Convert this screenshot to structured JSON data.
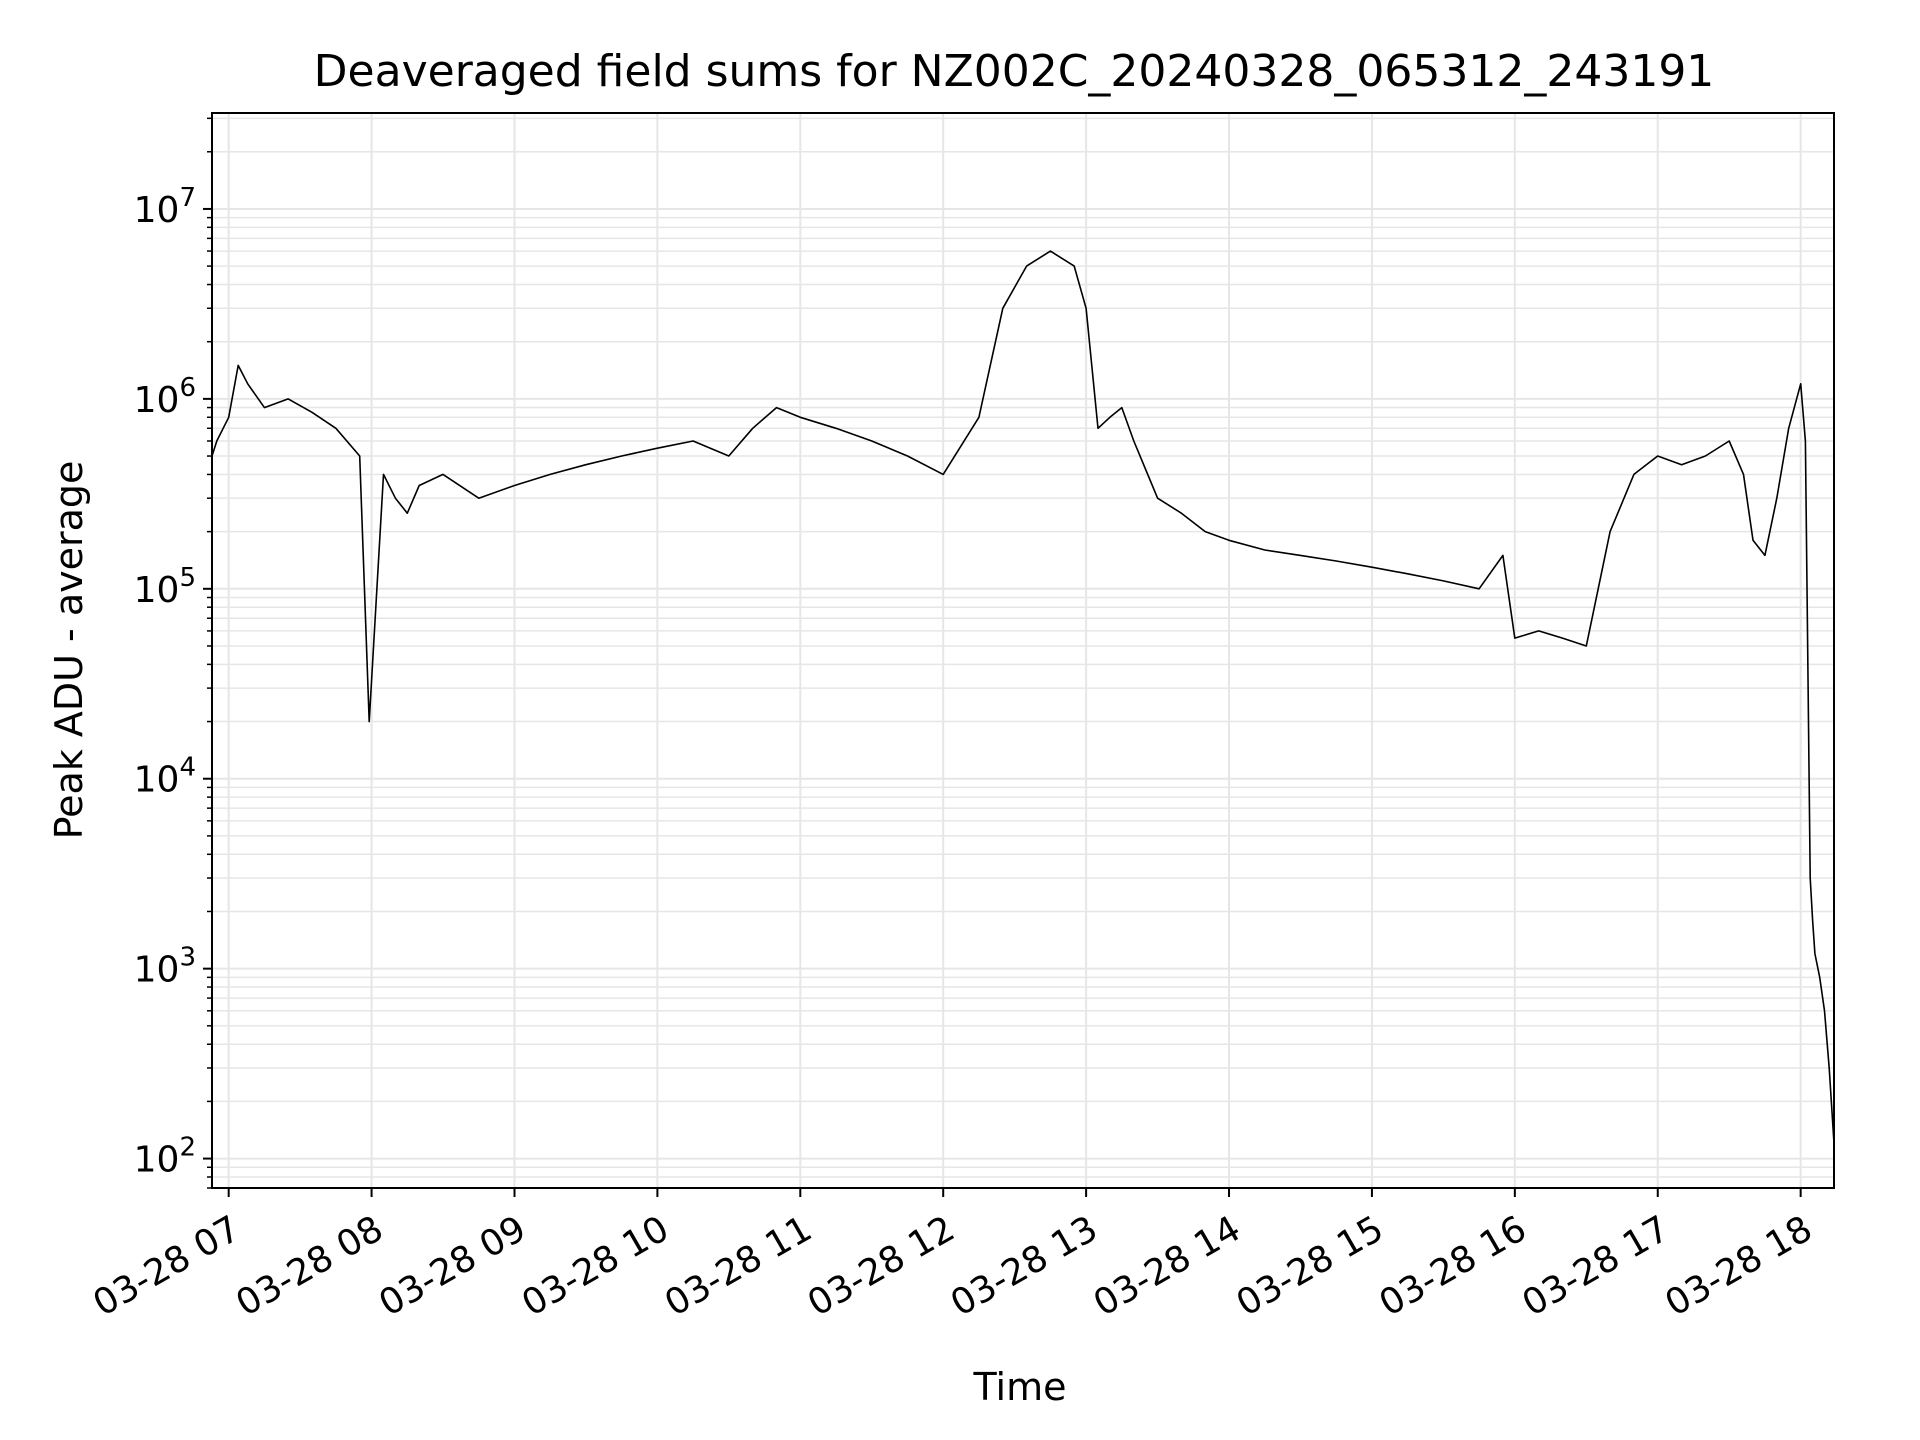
{
  "chart_data": {
    "type": "line",
    "title": "Deaveraged field sums for NZ002C_20240328_065312_243191",
    "xlabel": "Time",
    "ylabel": "Peak ADU - average",
    "yscale": "log",
    "ylim": [
      70,
      32000000
    ],
    "xlim": [
      "2024-03-28 06:53",
      "2024-03-28 18:14"
    ],
    "grid": true,
    "line_color": "#000000",
    "grid_color": "#e6e6e6",
    "x_ticks": [
      "2024-03-28 07:00",
      "2024-03-28 08:00",
      "2024-03-28 09:00",
      "2024-03-28 10:00",
      "2024-03-28 11:00",
      "2024-03-28 12:00",
      "2024-03-28 13:00",
      "2024-03-28 14:00",
      "2024-03-28 15:00",
      "2024-03-28 16:00",
      "2024-03-28 17:00",
      "2024-03-28 18:00"
    ],
    "x_tick_labels": [
      "03-28 07",
      "03-28 08",
      "03-28 09",
      "03-28 10",
      "03-28 11",
      "03-28 12",
      "03-28 13",
      "03-28 14",
      "03-28 15",
      "03-28 16",
      "03-28 17",
      "03-28 18"
    ],
    "y_tick_values": [
      100,
      1000,
      10000,
      100000,
      1000000,
      10000000
    ],
    "y_tick_labels": [
      {
        "base": "10",
        "exp": "2"
      },
      {
        "base": "10",
        "exp": "3"
      },
      {
        "base": "10",
        "exp": "4"
      },
      {
        "base": "10",
        "exp": "5"
      },
      {
        "base": "10",
        "exp": "6"
      },
      {
        "base": "10",
        "exp": "7"
      }
    ],
    "series": [
      {
        "x": [
          "2024-03-28 06:53",
          "2024-03-28 06:55",
          "2024-03-28 07:00",
          "2024-03-28 07:04",
          "2024-03-28 07:08",
          "2024-03-28 07:15",
          "2024-03-28 07:25",
          "2024-03-28 07:35",
          "2024-03-28 07:45",
          "2024-03-28 07:55",
          "2024-03-28 07:59",
          "2024-03-28 08:05",
          "2024-03-28 08:10",
          "2024-03-28 08:15",
          "2024-03-28 08:20",
          "2024-03-28 08:30",
          "2024-03-28 08:45",
          "2024-03-28 09:00",
          "2024-03-28 09:15",
          "2024-03-28 09:30",
          "2024-03-28 09:45",
          "2024-03-28 10:00",
          "2024-03-28 10:15",
          "2024-03-28 10:30",
          "2024-03-28 10:40",
          "2024-03-28 10:50",
          "2024-03-28 11:00",
          "2024-03-28 11:15",
          "2024-03-28 11:30",
          "2024-03-28 11:45",
          "2024-03-28 12:00",
          "2024-03-28 12:15",
          "2024-03-28 12:25",
          "2024-03-28 12:35",
          "2024-03-28 12:45",
          "2024-03-28 12:55",
          "2024-03-28 13:00",
          "2024-03-28 13:05",
          "2024-03-28 13:10",
          "2024-03-28 13:15",
          "2024-03-28 13:20",
          "2024-03-28 13:30",
          "2024-03-28 13:40",
          "2024-03-28 13:50",
          "2024-03-28 14:00",
          "2024-03-28 14:15",
          "2024-03-28 14:30",
          "2024-03-28 14:45",
          "2024-03-28 15:00",
          "2024-03-28 15:15",
          "2024-03-28 15:30",
          "2024-03-28 15:45",
          "2024-03-28 15:55",
          "2024-03-28 16:00",
          "2024-03-28 16:10",
          "2024-03-28 16:20",
          "2024-03-28 16:30",
          "2024-03-28 16:40",
          "2024-03-28 16:50",
          "2024-03-28 17:00",
          "2024-03-28 17:10",
          "2024-03-28 17:20",
          "2024-03-28 17:30",
          "2024-03-28 17:36",
          "2024-03-28 17:40",
          "2024-03-28 17:45",
          "2024-03-28 17:50",
          "2024-03-28 17:55",
          "2024-03-28 18:00",
          "2024-03-28 18:02",
          "2024-03-28 18:04",
          "2024-03-28 18:05",
          "2024-03-28 18:06",
          "2024-03-28 18:08",
          "2024-03-28 18:10",
          "2024-03-28 18:12",
          "2024-03-28 18:14"
        ],
        "values": [
          500000,
          600000,
          800000,
          1500000,
          1200000,
          900000,
          1000000,
          850000,
          700000,
          500000,
          20000,
          400000,
          300000,
          250000,
          350000,
          400000,
          300000,
          350000,
          400000,
          450000,
          500000,
          550000,
          600000,
          500000,
          700000,
          900000,
          800000,
          700000,
          600000,
          500000,
          400000,
          800000,
          3000000,
          5000000,
          6000000,
          5000000,
          3000000,
          700000,
          800000,
          900000,
          600000,
          300000,
          250000,
          200000,
          180000,
          160000,
          150000,
          140000,
          130000,
          120000,
          110000,
          100000,
          150000,
          55000,
          60000,
          55000,
          50000,
          200000,
          400000,
          500000,
          450000,
          500000,
          600000,
          400000,
          180000,
          150000,
          300000,
          700000,
          1200000,
          600000,
          3000,
          1800,
          1200,
          900,
          600,
          300,
          120
        ]
      }
    ]
  }
}
